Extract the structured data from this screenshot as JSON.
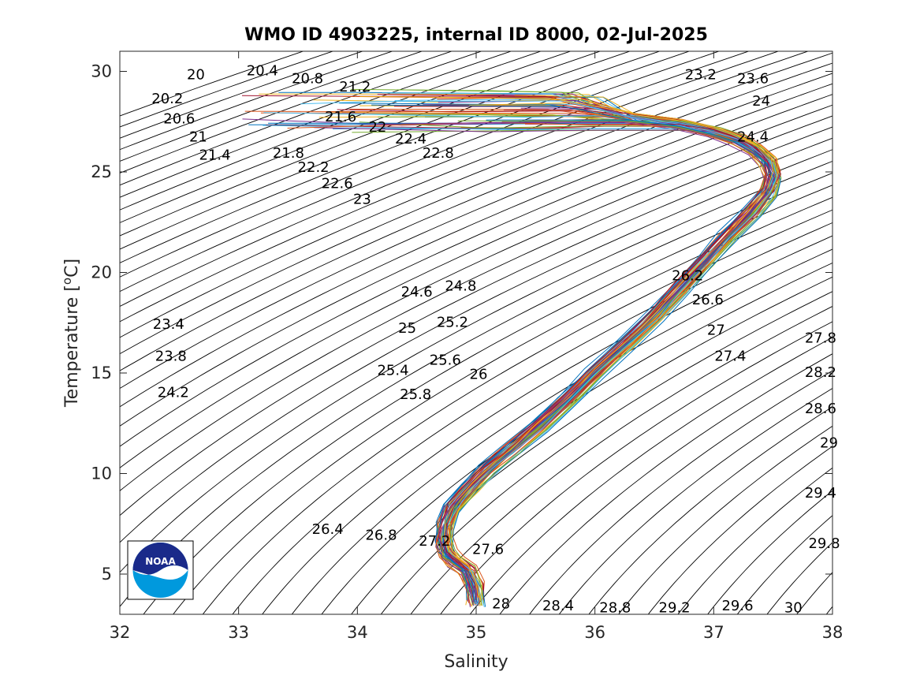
{
  "chart_data": {
    "type": "line",
    "title": "WMO ID 4903225, internal ID 8000, 02-Jul-2025",
    "xlabel": "Salinity",
    "ylabel_main": "Temperature [",
    "ylabel_sup": "o",
    "ylabel_end": "C]",
    "xlim": [
      32,
      38
    ],
    "ylim": [
      3,
      31
    ],
    "xticks": [
      32,
      33,
      34,
      35,
      36,
      37,
      38
    ],
    "yticks": [
      5,
      10,
      15,
      20,
      25,
      30
    ],
    "grid": false,
    "legend": "none",
    "density_contours": {
      "start": 19.6,
      "step": 0.2,
      "end": 30.4,
      "color": "#000000"
    },
    "contour_labels": [
      {
        "label": "20",
        "s": 32.64,
        "t": 29.8
      },
      {
        "label": "20.4",
        "s": 33.2,
        "t": 30.0
      },
      {
        "label": "20.8",
        "s": 33.58,
        "t": 29.6
      },
      {
        "label": "21.2",
        "s": 33.98,
        "t": 29.2
      },
      {
        "label": "20.2",
        "s": 32.4,
        "t": 28.6
      },
      {
        "label": "20.6",
        "s": 32.5,
        "t": 27.6
      },
      {
        "label": "21.6",
        "s": 33.86,
        "t": 27.7
      },
      {
        "label": "22",
        "s": 34.17,
        "t": 27.2
      },
      {
        "label": "21",
        "s": 32.66,
        "t": 26.7
      },
      {
        "label": "22.4",
        "s": 34.45,
        "t": 26.6
      },
      {
        "label": "21.4",
        "s": 32.8,
        "t": 25.8
      },
      {
        "label": "21.8",
        "s": 33.42,
        "t": 25.9
      },
      {
        "label": "22.8",
        "s": 34.68,
        "t": 25.9
      },
      {
        "label": "22.2",
        "s": 33.63,
        "t": 25.2
      },
      {
        "label": "22.6",
        "s": 33.83,
        "t": 24.4
      },
      {
        "label": "23",
        "s": 34.04,
        "t": 23.6
      },
      {
        "label": "23.2",
        "s": 36.89,
        "t": 29.8
      },
      {
        "label": "23.6",
        "s": 37.33,
        "t": 29.6
      },
      {
        "label": "24",
        "s": 37.4,
        "t": 28.5
      },
      {
        "label": "24.4",
        "s": 37.33,
        "t": 26.7
      },
      {
        "label": "26.2",
        "s": 36.78,
        "t": 19.8
      },
      {
        "label": "24.6",
        "s": 34.5,
        "t": 19.0
      },
      {
        "label": "24.8",
        "s": 34.87,
        "t": 19.3
      },
      {
        "label": "26.6",
        "s": 36.95,
        "t": 18.6
      },
      {
        "label": "23.4",
        "s": 32.41,
        "t": 17.4
      },
      {
        "label": "25",
        "s": 34.42,
        "t": 17.2
      },
      {
        "label": "25.2",
        "s": 34.8,
        "t": 17.5
      },
      {
        "label": "27",
        "s": 37.02,
        "t": 17.1
      },
      {
        "label": "27.8",
        "s": 37.9,
        "t": 16.7
      },
      {
        "label": "23.8",
        "s": 32.43,
        "t": 15.8
      },
      {
        "label": "25.6",
        "s": 34.74,
        "t": 15.6
      },
      {
        "label": "27.4",
        "s": 37.14,
        "t": 15.8
      },
      {
        "label": "25.4",
        "s": 34.3,
        "t": 15.1
      },
      {
        "label": "26",
        "s": 35.02,
        "t": 14.9
      },
      {
        "label": "28.2",
        "s": 37.9,
        "t": 15.0
      },
      {
        "label": "24.2",
        "s": 32.45,
        "t": 14.0
      },
      {
        "label": "25.8",
        "s": 34.49,
        "t": 13.9
      },
      {
        "label": "28.6",
        "s": 37.9,
        "t": 13.2
      },
      {
        "label": "29",
        "s": 37.97,
        "t": 11.5
      },
      {
        "label": "29.4",
        "s": 37.9,
        "t": 9.0
      },
      {
        "label": "26.4",
        "s": 33.75,
        "t": 7.2
      },
      {
        "label": "26.8",
        "s": 34.2,
        "t": 6.9
      },
      {
        "label": "27.2",
        "s": 34.65,
        "t": 6.6
      },
      {
        "label": "27.6",
        "s": 35.1,
        "t": 6.2
      },
      {
        "label": "29.8",
        "s": 37.93,
        "t": 6.5
      },
      {
        "label": "28",
        "s": 35.21,
        "t": 3.5
      },
      {
        "label": "28.4",
        "s": 35.69,
        "t": 3.4
      },
      {
        "label": "28.8",
        "s": 36.17,
        "t": 3.3
      },
      {
        "label": "29.2",
        "s": 36.67,
        "t": 3.3
      },
      {
        "label": "29.6",
        "s": 37.2,
        "t": 3.4
      },
      {
        "label": "30",
        "s": 37.67,
        "t": 3.3
      }
    ],
    "mean_profile": {
      "salinity": [
        35.0,
        34.99,
        34.93,
        34.83,
        34.76,
        34.73,
        34.74,
        34.8,
        34.95,
        35.1,
        35.3,
        35.52,
        35.76,
        36.0,
        36.25,
        36.5,
        36.72,
        36.92,
        37.12,
        37.32,
        37.46,
        37.5,
        37.46,
        37.35,
        37.2,
        37.0,
        36.7,
        36.3
      ],
      "temperature": [
        3.6,
        4.4,
        5.2,
        5.6,
        6.0,
        6.6,
        7.4,
        8.3,
        9.3,
        10.2,
        11.2,
        12.3,
        13.6,
        15.0,
        16.4,
        17.8,
        19.2,
        20.5,
        21.8,
        23.0,
        24.0,
        24.8,
        25.5,
        26.1,
        26.6,
        27.0,
        27.4,
        27.7
      ]
    },
    "profile_count": 60,
    "series_colors": [
      "#0072BD",
      "#D95319",
      "#EDB120",
      "#7E2F8E",
      "#77AC30",
      "#4DBEEE",
      "#A2142F"
    ]
  },
  "logo": {
    "text": "NOAA",
    "name": "noaa-logo"
  }
}
